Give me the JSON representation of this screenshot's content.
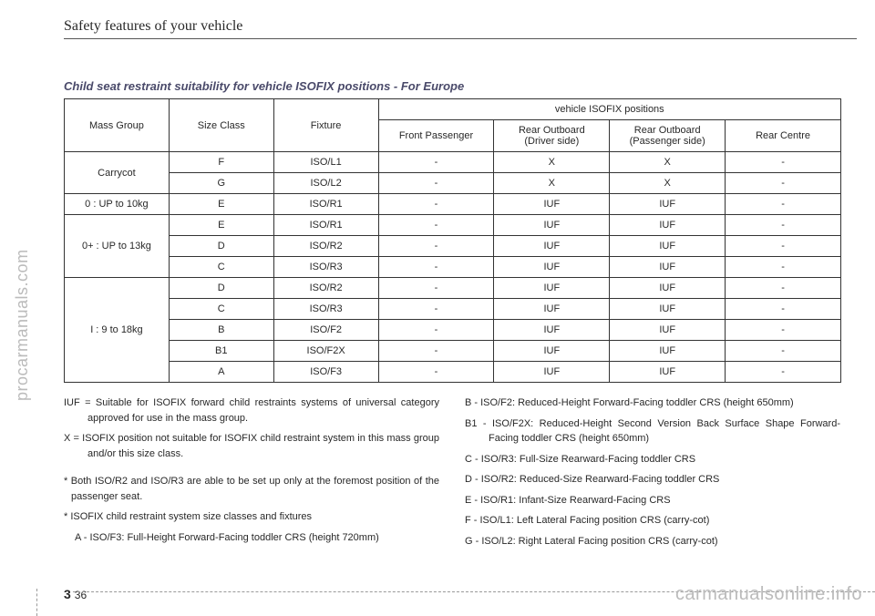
{
  "header": "Safety features of your vehicle",
  "sectionTitle": "Child seat restraint suitability for vehicle ISOFIX positions - For Europe",
  "table": {
    "head": {
      "massGroup": "Mass Group",
      "sizeClass": "Size Class",
      "fixture": "Fixture",
      "positionsHeader": "vehicle  ISOFIX positions",
      "front": "Front Passenger",
      "rearDriver1": "Rear Outboard",
      "rearDriver2": "(Driver side)",
      "rearPass1": "Rear Outboard",
      "rearPass2": "(Passenger side)",
      "rearCentre": "Rear Centre"
    },
    "rows": [
      {
        "group": "Carrycot",
        "span": 2,
        "size": "F",
        "fix": "ISO/L1",
        "c1": "-",
        "c2": "X",
        "c3": "X",
        "c4": "-"
      },
      {
        "size": "G",
        "fix": "ISO/L2",
        "c1": "-",
        "c2": "X",
        "c3": "X",
        "c4": "-"
      },
      {
        "group": "0 : UP to 10kg",
        "span": 1,
        "size": "E",
        "fix": "ISO/R1",
        "c1": "-",
        "c2": "IUF",
        "c3": "IUF",
        "c4": "-"
      },
      {
        "group": "0+ : UP to 13kg",
        "span": 3,
        "size": "E",
        "fix": "ISO/R1",
        "c1": "-",
        "c2": "IUF",
        "c3": "IUF",
        "c4": "-"
      },
      {
        "size": "D",
        "fix": "ISO/R2",
        "c1": "-",
        "c2": "IUF",
        "c3": "IUF",
        "c4": "-"
      },
      {
        "size": "C",
        "fix": "ISO/R3",
        "c1": "-",
        "c2": "IUF",
        "c3": "IUF",
        "c4": "-"
      },
      {
        "group": "I : 9 to 18kg",
        "span": 5,
        "size": "D",
        "fix": "ISO/R2",
        "c1": "-",
        "c2": "IUF",
        "c3": "IUF",
        "c4": "-"
      },
      {
        "size": "C",
        "fix": "ISO/R3",
        "c1": "-",
        "c2": "IUF",
        "c3": "IUF",
        "c4": "-"
      },
      {
        "size": "B",
        "fix": "ISO/F2",
        "c1": "-",
        "c2": "IUF",
        "c3": "IUF",
        "c4": "-"
      },
      {
        "size": "B1",
        "fix": "ISO/F2X",
        "c1": "-",
        "c2": "IUF",
        "c3": "IUF",
        "c4": "-"
      },
      {
        "size": "A",
        "fix": "ISO/F3",
        "c1": "-",
        "c2": "IUF",
        "c3": "IUF",
        "c4": "-"
      }
    ]
  },
  "notesLeft": {
    "iuf": "IUF = Suitable for ISOFIX forward child restraints systems of universal category approved for use in the mass group.",
    "x": "X = ISOFIX position not suitable for ISOFIX child restraint system in this mass group and/or this size class.",
    "star1": "* Both ISO/R2 and ISO/R3 are able to be set up only at the foremost position of the passenger seat.",
    "star2": "* ISOFIX child restraint system size classes and fixtures",
    "a": "A - ISO/F3: Full-Height Forward-Facing toddler CRS (height 720mm)"
  },
  "notesRight": {
    "b": "B - ISO/F2: Reduced-Height Forward-Facing toddler CRS (height 650mm)",
    "b1": "B1 - ISO/F2X: Reduced-Height Second Version Back Surface Shape Forward-Facing toddler CRS (height 650mm)",
    "c": "C - ISO/R3: Full-Size Rearward-Facing toddler CRS",
    "d": "D - ISO/R2: Reduced-Size Rearward-Facing toddler CRS",
    "e": "E - ISO/R1: Infant-Size Rearward-Facing CRS",
    "f": "F - ISO/L1: Left Lateral Facing position CRS (carry-cot)",
    "g": "G - ISO/L2: Right Lateral Facing position CRS (carry-cot)"
  },
  "sideWatermark": "procarmanuals.com",
  "footerWatermark": "carmanualsonline.info",
  "pageChapter": "3",
  "pageNum": "36"
}
